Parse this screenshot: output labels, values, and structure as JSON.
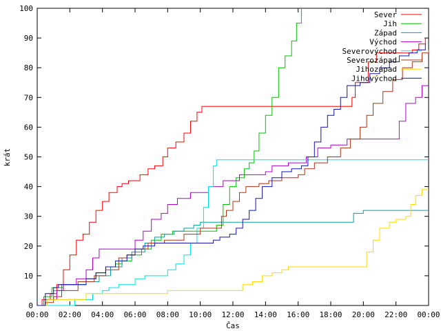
{
  "chart_data": {
    "type": "line",
    "step": true,
    "title": "",
    "xlabel": "Čas",
    "ylabel": "krát",
    "xlim": [
      0,
      24
    ],
    "ylim": [
      0,
      100
    ],
    "x_ticks": [
      {
        "v": 0,
        "label": "00:00"
      },
      {
        "v": 2,
        "label": "02:00"
      },
      {
        "v": 4,
        "label": "04:00"
      },
      {
        "v": 6,
        "label": "06:00"
      },
      {
        "v": 8,
        "label": "08:00"
      },
      {
        "v": 10,
        "label": "10:00"
      },
      {
        "v": 12,
        "label": "12:00"
      },
      {
        "v": 14,
        "label": "14:00"
      },
      {
        "v": 16,
        "label": "16:00"
      },
      {
        "v": 18,
        "label": "18:00"
      },
      {
        "v": 20,
        "label": "20:00"
      },
      {
        "v": 22,
        "label": "22:00"
      },
      {
        "v": 24,
        "label": "00:00"
      }
    ],
    "y_ticks": [
      0,
      10,
      20,
      30,
      40,
      50,
      60,
      70,
      80,
      90,
      100
    ],
    "grid": false,
    "legend_position": "top-right",
    "series": [
      {
        "name": "Sever",
        "color": "#ff0000",
        "points": [
          [
            0,
            0
          ],
          [
            0.3,
            2
          ],
          [
            0.8,
            4
          ],
          [
            1.2,
            7
          ],
          [
            1.6,
            12
          ],
          [
            2.0,
            17
          ],
          [
            2.4,
            22
          ],
          [
            2.8,
            24
          ],
          [
            3.2,
            28
          ],
          [
            3.6,
            32
          ],
          [
            4.0,
            35
          ],
          [
            4.4,
            38
          ],
          [
            4.9,
            40
          ],
          [
            5.2,
            41
          ],
          [
            5.6,
            42
          ],
          [
            6.3,
            44
          ],
          [
            6.8,
            46
          ],
          [
            7.2,
            47
          ],
          [
            7.7,
            50
          ],
          [
            8.0,
            53
          ],
          [
            8.5,
            55
          ],
          [
            9.0,
            58
          ],
          [
            9.4,
            62
          ],
          [
            9.8,
            65
          ],
          [
            10.1,
            67
          ],
          [
            19.0,
            67
          ],
          [
            19.3,
            70
          ],
          [
            19.5,
            75
          ],
          [
            20.3,
            82
          ],
          [
            20.8,
            85
          ],
          [
            23.0,
            86
          ],
          [
            23.4,
            88
          ],
          [
            23.8,
            90
          ]
        ]
      },
      {
        "name": "Jih",
        "color": "#00c000",
        "points": [
          [
            0,
            0
          ],
          [
            0.4,
            3
          ],
          [
            0.9,
            6
          ],
          [
            1.6,
            7
          ],
          [
            3.0,
            9
          ],
          [
            3.6,
            11
          ],
          [
            4.2,
            13
          ],
          [
            4.8,
            14
          ],
          [
            5.2,
            15
          ],
          [
            5.8,
            17
          ],
          [
            6.4,
            19
          ],
          [
            7.0,
            22
          ],
          [
            7.6,
            24
          ],
          [
            8.3,
            25
          ],
          [
            9.0,
            25
          ],
          [
            10.0,
            25
          ],
          [
            10.8,
            25
          ],
          [
            11.0,
            27
          ],
          [
            11.4,
            34
          ],
          [
            11.8,
            40
          ],
          [
            12.2,
            43
          ],
          [
            12.7,
            46
          ],
          [
            13.0,
            48
          ],
          [
            13.3,
            52
          ],
          [
            13.6,
            58
          ],
          [
            14.0,
            64
          ],
          [
            14.4,
            70
          ],
          [
            14.8,
            80
          ],
          [
            15.2,
            84
          ],
          [
            15.6,
            89
          ],
          [
            15.9,
            95
          ],
          [
            16.2,
            100
          ]
        ]
      },
      {
        "name": "Západ",
        "color": "#00a0a0",
        "points": [
          [
            0,
            0
          ],
          [
            0.5,
            2
          ],
          [
            1.0,
            5
          ],
          [
            1.5,
            7
          ],
          [
            3.0,
            8
          ],
          [
            3.8,
            10
          ],
          [
            4.5,
            13
          ],
          [
            5.2,
            16
          ],
          [
            5.8,
            18
          ],
          [
            6.6,
            21
          ],
          [
            7.2,
            23
          ],
          [
            7.8,
            24
          ],
          [
            8.4,
            25
          ],
          [
            9.0,
            26
          ],
          [
            9.6,
            27
          ],
          [
            10.0,
            28
          ],
          [
            19.2,
            28
          ],
          [
            19.4,
            31
          ],
          [
            20.0,
            32
          ],
          [
            24,
            32
          ]
        ]
      },
      {
        "name": "Východ",
        "color": "#b000d0",
        "points": [
          [
            0,
            0
          ],
          [
            0.6,
            2
          ],
          [
            1.2,
            5
          ],
          [
            1.6,
            7
          ],
          [
            2.4,
            9
          ],
          [
            3.0,
            12
          ],
          [
            3.4,
            16
          ],
          [
            3.8,
            19
          ],
          [
            5.5,
            19
          ],
          [
            6.0,
            22
          ],
          [
            6.5,
            25
          ],
          [
            7.0,
            29
          ],
          [
            7.6,
            31
          ],
          [
            8.0,
            34
          ],
          [
            8.6,
            36
          ],
          [
            9.4,
            38
          ],
          [
            10.5,
            40
          ],
          [
            11.4,
            42
          ],
          [
            12.4,
            44
          ],
          [
            13.6,
            44
          ],
          [
            14.0,
            45
          ],
          [
            14.4,
            47
          ],
          [
            15.4,
            48
          ],
          [
            16.2,
            48
          ],
          [
            16.5,
            50
          ],
          [
            17.2,
            53
          ],
          [
            18.0,
            54
          ],
          [
            19.0,
            56
          ],
          [
            20.0,
            56
          ],
          [
            21.0,
            56
          ],
          [
            21.8,
            56
          ],
          [
            22.2,
            62
          ],
          [
            22.6,
            68
          ],
          [
            23.2,
            70
          ],
          [
            23.6,
            74
          ],
          [
            24,
            74
          ]
        ]
      },
      {
        "name": "Severovýchod",
        "color": "#00e0e0",
        "points": [
          [
            0,
            0
          ],
          [
            2.0,
            0
          ],
          [
            2.3,
            2
          ],
          [
            3.4,
            4
          ],
          [
            4.0,
            5
          ],
          [
            4.4,
            6
          ],
          [
            5.0,
            7
          ],
          [
            6.0,
            9
          ],
          [
            6.6,
            10
          ],
          [
            7.4,
            10
          ],
          [
            8.0,
            12
          ],
          [
            8.5,
            14
          ],
          [
            9.0,
            17
          ],
          [
            9.4,
            21
          ],
          [
            9.8,
            26
          ],
          [
            10.2,
            33
          ],
          [
            10.5,
            40
          ],
          [
            10.8,
            47
          ],
          [
            11.0,
            49
          ],
          [
            24,
            49
          ]
        ]
      },
      {
        "name": "Severozápad",
        "color": "#b03010",
        "points": [
          [
            0,
            0
          ],
          [
            0.5,
            1
          ],
          [
            1.0,
            3
          ],
          [
            1.5,
            5
          ],
          [
            2.5,
            8
          ],
          [
            3.5,
            10
          ],
          [
            4.2,
            12
          ],
          [
            5.0,
            16
          ],
          [
            5.5,
            17
          ],
          [
            6.0,
            19
          ],
          [
            6.8,
            21
          ],
          [
            7.8,
            22
          ],
          [
            9.0,
            24
          ],
          [
            10.0,
            26
          ],
          [
            11.0,
            26
          ],
          [
            11.3,
            30
          ],
          [
            11.6,
            32
          ],
          [
            12.0,
            35
          ],
          [
            12.4,
            38
          ],
          [
            12.8,
            40
          ],
          [
            13.6,
            41
          ],
          [
            14.2,
            42
          ],
          [
            15.0,
            43
          ],
          [
            16.0,
            44
          ],
          [
            16.4,
            46
          ],
          [
            17.0,
            48
          ],
          [
            17.8,
            50
          ],
          [
            18.6,
            53
          ],
          [
            19.2,
            56
          ],
          [
            19.8,
            60
          ],
          [
            20.2,
            64
          ],
          [
            20.6,
            68
          ],
          [
            21.2,
            72
          ],
          [
            21.8,
            76
          ],
          [
            22.4,
            80
          ],
          [
            23.0,
            82
          ],
          [
            23.6,
            85
          ],
          [
            24,
            86
          ]
        ]
      },
      {
        "name": "Jihozápad",
        "color": "#ffd700",
        "points": [
          [
            0,
            0
          ],
          [
            0.6,
            2
          ],
          [
            2.6,
            2
          ],
          [
            3.0,
            4
          ],
          [
            4.8,
            4
          ],
          [
            6.0,
            4
          ],
          [
            8.0,
            5
          ],
          [
            10.0,
            5
          ],
          [
            12.2,
            5
          ],
          [
            12.6,
            7
          ],
          [
            13.2,
            8
          ],
          [
            13.8,
            10
          ],
          [
            14.4,
            11
          ],
          [
            15.0,
            12
          ],
          [
            15.4,
            13
          ],
          [
            18.0,
            13
          ],
          [
            19.8,
            13
          ],
          [
            20.2,
            18
          ],
          [
            20.6,
            22
          ],
          [
            21.0,
            26
          ],
          [
            21.6,
            28
          ],
          [
            22.0,
            29
          ],
          [
            22.6,
            30
          ],
          [
            22.9,
            34
          ],
          [
            23.2,
            37
          ],
          [
            23.6,
            39
          ],
          [
            24,
            39
          ]
        ]
      },
      {
        "name": "Jihovýchod",
        "color": "#1010b0",
        "points": [
          [
            0,
            0
          ],
          [
            0.5,
            4
          ],
          [
            1.0,
            6
          ],
          [
            1.3,
            7
          ],
          [
            2.5,
            7
          ],
          [
            3.0,
            9
          ],
          [
            3.6,
            11
          ],
          [
            4.2,
            13
          ],
          [
            4.8,
            15
          ],
          [
            5.5,
            17
          ],
          [
            6.0,
            19
          ],
          [
            6.5,
            20
          ],
          [
            7.2,
            21
          ],
          [
            8.0,
            21
          ],
          [
            9.5,
            21
          ],
          [
            10.2,
            21
          ],
          [
            10.8,
            22
          ],
          [
            11.2,
            23
          ],
          [
            11.8,
            24
          ],
          [
            12.2,
            26
          ],
          [
            12.6,
            29
          ],
          [
            13.0,
            32
          ],
          [
            13.4,
            36
          ],
          [
            13.8,
            40
          ],
          [
            14.4,
            43
          ],
          [
            15.0,
            45
          ],
          [
            15.6,
            46
          ],
          [
            16.2,
            47
          ],
          [
            16.6,
            50
          ],
          [
            17.0,
            55
          ],
          [
            17.4,
            60
          ],
          [
            17.8,
            64
          ],
          [
            18.2,
            66
          ],
          [
            18.6,
            70
          ],
          [
            19.0,
            74
          ],
          [
            19.8,
            75
          ],
          [
            20.4,
            78
          ],
          [
            21.0,
            80
          ],
          [
            21.6,
            82
          ],
          [
            22.2,
            84
          ],
          [
            22.8,
            85
          ],
          [
            23.3,
            86
          ],
          [
            23.8,
            88
          ]
        ]
      }
    ]
  }
}
